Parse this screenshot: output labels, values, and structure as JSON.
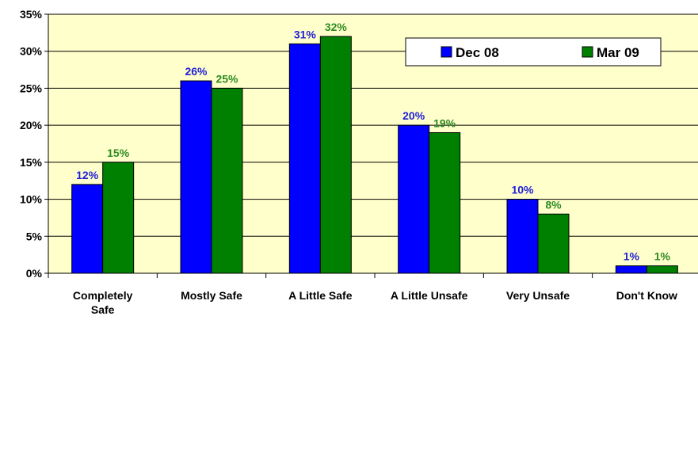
{
  "chart_data": {
    "type": "bar",
    "categories": [
      [
        "Completely",
        "Safe"
      ],
      [
        "Mostly Safe"
      ],
      [
        "A Little Safe"
      ],
      [
        "A Little Unsafe"
      ],
      [
        "Very Unsafe"
      ],
      [
        "Don't Know"
      ]
    ],
    "series": [
      {
        "name": "Dec 08",
        "values": [
          12,
          26,
          31,
          20,
          10,
          1
        ],
        "labels": [
          "12%",
          "26%",
          "31%",
          "20%",
          "10%",
          "1%"
        ],
        "color": "#0000ff",
        "label_color": "#1f1fd6"
      },
      {
        "name": "Mar 09",
        "values": [
          15,
          25,
          32,
          19,
          8,
          1
        ],
        "labels": [
          "15%",
          "25%",
          "32%",
          "19%",
          "8%",
          "1%"
        ],
        "color": "#008000",
        "label_color": "#2e8b22"
      }
    ],
    "yticks": [
      "0%",
      "5%",
      "10%",
      "15%",
      "20%",
      "25%",
      "30%",
      "35%"
    ],
    "ylim": [
      0,
      35
    ],
    "ytick_step": 5,
    "grid": true,
    "legend_position": "top-right",
    "plot_background": "#ffffcc"
  }
}
